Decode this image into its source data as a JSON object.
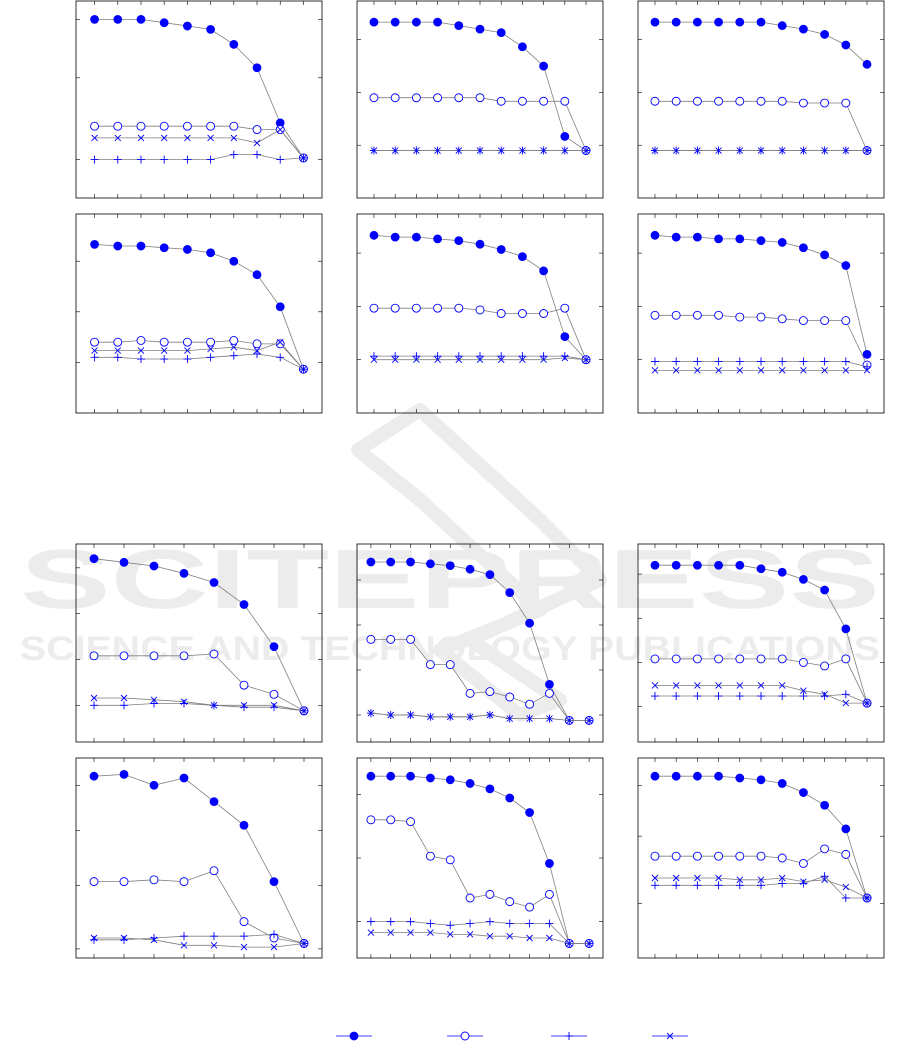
{
  "watermark": {
    "title": "SCITEPRESS",
    "subtitle": "SCIENCE AND TECHNOLOGY PUBLICATIONS"
  },
  "colors": {
    "marker": "#0000ff",
    "line": "#808080",
    "frame": "#000000",
    "watermark": "#ececec"
  },
  "legend": [
    {
      "name": "",
      "marker": "filled-circle"
    },
    {
      "name": "",
      "marker": "open-circle"
    },
    {
      "name": "",
      "marker": "plus"
    },
    {
      "name": "",
      "marker": "cross"
    }
  ],
  "chart_data": [
    {
      "type": "line",
      "x": [
        1,
        2,
        3,
        4,
        5,
        6,
        7,
        8,
        9,
        10
      ],
      "xlim": [
        0.2,
        10.8
      ],
      "ylim": [
        0,
        1.18
      ],
      "yticks": [
        0.23,
        0.72,
        1.07
      ],
      "grid": false,
      "series": [
        {
          "marker": "filled-circle",
          "values": [
            1.07,
            1.07,
            1.07,
            1.05,
            1.03,
            1.01,
            0.92,
            0.78,
            0.45,
            0.24
          ]
        },
        {
          "marker": "open-circle",
          "values": [
            0.43,
            0.43,
            0.43,
            0.43,
            0.43,
            0.43,
            0.43,
            0.41,
            0.41,
            0.24
          ]
        },
        {
          "marker": "cross",
          "values": [
            0.36,
            0.36,
            0.36,
            0.36,
            0.36,
            0.36,
            0.36,
            0.33,
            0.41,
            0.24
          ]
        },
        {
          "marker": "plus",
          "values": [
            0.23,
            0.23,
            0.23,
            0.23,
            0.23,
            0.23,
            0.26,
            0.26,
            0.23,
            0.24
          ]
        }
      ]
    },
    {
      "type": "line",
      "x": [
        1,
        2,
        3,
        4,
        5,
        6,
        7,
        8,
        9,
        10,
        11
      ],
      "xlim": [
        0.2,
        11.8
      ],
      "ylim": [
        0,
        1.12
      ],
      "yticks": [
        0.3,
        0.6,
        0.9
      ],
      "grid": false,
      "series": [
        {
          "marker": "filled-circle",
          "values": [
            1.0,
            1.0,
            1.0,
            1.0,
            0.98,
            0.96,
            0.94,
            0.86,
            0.75,
            0.35,
            0.27
          ]
        },
        {
          "marker": "open-circle",
          "values": [
            0.57,
            0.57,
            0.57,
            0.57,
            0.57,
            0.57,
            0.55,
            0.55,
            0.55,
            0.55,
            0.27
          ]
        },
        {
          "marker": "plus",
          "values": [
            0.27,
            0.27,
            0.27,
            0.27,
            0.27,
            0.27,
            0.27,
            0.27,
            0.27,
            0.27,
            0.27
          ]
        },
        {
          "marker": "cross",
          "values": [
            0.27,
            0.27,
            0.27,
            0.27,
            0.27,
            0.27,
            0.27,
            0.27,
            0.27,
            0.27,
            0.27
          ]
        }
      ]
    },
    {
      "type": "line",
      "x": [
        1,
        2,
        3,
        4,
        5,
        6,
        7,
        8,
        9,
        10,
        11
      ],
      "xlim": [
        0.2,
        11.8
      ],
      "ylim": [
        0,
        1.12
      ],
      "yticks": [
        0.3,
        0.6,
        0.9
      ],
      "grid": false,
      "series": [
        {
          "marker": "filled-circle",
          "values": [
            1.0,
            1.0,
            1.0,
            1.0,
            1.0,
            1.0,
            0.98,
            0.96,
            0.93,
            0.87,
            0.76
          ]
        },
        {
          "marker": "open-circle",
          "values": [
            0.55,
            0.55,
            0.55,
            0.55,
            0.55,
            0.55,
            0.55,
            0.54,
            0.54,
            0.54,
            0.27
          ]
        },
        {
          "marker": "plus",
          "values": [
            0.27,
            0.27,
            0.27,
            0.27,
            0.27,
            0.27,
            0.27,
            0.27,
            0.27,
            0.27,
            0.27
          ]
        },
        {
          "marker": "cross",
          "values": [
            0.27,
            0.27,
            0.27,
            0.27,
            0.27,
            0.27,
            0.27,
            0.27,
            0.27,
            0.27,
            0.27
          ]
        }
      ]
    },
    {
      "type": "line",
      "x": [
        1,
        2,
        3,
        4,
        5,
        6,
        7,
        8,
        9,
        10
      ],
      "xlim": [
        0.2,
        10.8
      ],
      "ylim": [
        0,
        1.18
      ],
      "yticks": [
        0.3,
        0.6,
        0.9
      ],
      "grid": false,
      "series": [
        {
          "marker": "filled-circle",
          "values": [
            1.0,
            0.99,
            0.99,
            0.98,
            0.97,
            0.95,
            0.9,
            0.82,
            0.63,
            0.26
          ]
        },
        {
          "marker": "open-circle",
          "values": [
            0.42,
            0.42,
            0.43,
            0.42,
            0.42,
            0.42,
            0.43,
            0.41,
            0.41,
            0.26
          ]
        },
        {
          "marker": "cross",
          "values": [
            0.37,
            0.37,
            0.37,
            0.37,
            0.37,
            0.38,
            0.39,
            0.37,
            0.42,
            0.26
          ]
        },
        {
          "marker": "plus",
          "values": [
            0.33,
            0.33,
            0.32,
            0.32,
            0.32,
            0.33,
            0.34,
            0.35,
            0.33,
            0.26
          ]
        }
      ]
    },
    {
      "type": "line",
      "x": [
        1,
        2,
        3,
        4,
        5,
        6,
        7,
        8,
        9,
        10,
        11
      ],
      "xlim": [
        0.2,
        11.8
      ],
      "ylim": [
        0,
        1.12
      ],
      "yticks": [
        0.3,
        0.6,
        0.9
      ],
      "grid": false,
      "series": [
        {
          "marker": "filled-circle",
          "values": [
            1.0,
            0.99,
            0.99,
            0.98,
            0.97,
            0.95,
            0.92,
            0.88,
            0.8,
            0.43,
            0.3
          ]
        },
        {
          "marker": "open-circle",
          "values": [
            0.59,
            0.59,
            0.59,
            0.59,
            0.59,
            0.58,
            0.56,
            0.56,
            0.56,
            0.59,
            0.3
          ]
        },
        {
          "marker": "plus",
          "values": [
            0.32,
            0.32,
            0.32,
            0.32,
            0.32,
            0.32,
            0.32,
            0.32,
            0.32,
            0.32,
            0.3
          ]
        },
        {
          "marker": "cross",
          "values": [
            0.3,
            0.3,
            0.3,
            0.3,
            0.3,
            0.3,
            0.3,
            0.3,
            0.3,
            0.31,
            0.3
          ]
        }
      ]
    },
    {
      "type": "line",
      "x": [
        1,
        2,
        3,
        4,
        5,
        6,
        7,
        8,
        9,
        10,
        11
      ],
      "xlim": [
        0.2,
        11.8
      ],
      "ylim": [
        0,
        1.12
      ],
      "yticks": [
        0.3,
        0.6,
        0.9
      ],
      "grid": false,
      "series": [
        {
          "marker": "filled-circle",
          "values": [
            1.0,
            0.99,
            0.99,
            0.98,
            0.98,
            0.97,
            0.96,
            0.93,
            0.89,
            0.83,
            0.33
          ]
        },
        {
          "marker": "open-circle",
          "values": [
            0.55,
            0.55,
            0.55,
            0.55,
            0.54,
            0.54,
            0.53,
            0.52,
            0.52,
            0.52,
            0.27
          ]
        },
        {
          "marker": "plus",
          "values": [
            0.29,
            0.29,
            0.29,
            0.29,
            0.29,
            0.29,
            0.29,
            0.29,
            0.29,
            0.29,
            0.26
          ]
        },
        {
          "marker": "cross",
          "values": [
            0.24,
            0.24,
            0.24,
            0.24,
            0.24,
            0.24,
            0.24,
            0.24,
            0.24,
            0.24,
            0.24
          ]
        }
      ]
    },
    {
      "type": "line",
      "x": [
        1,
        2,
        3,
        4,
        5,
        6,
        7,
        8
      ],
      "xlim": [
        0.4,
        8.6
      ],
      "ylim": [
        0,
        1.08
      ],
      "yticks": [
        0.2,
        0.45,
        0.7,
        0.95
      ],
      "grid": false,
      "series": [
        {
          "marker": "filled-circle",
          "values": [
            1.0,
            0.98,
            0.96,
            0.92,
            0.87,
            0.75,
            0.52,
            0.17
          ]
        },
        {
          "marker": "open-circle",
          "values": [
            0.47,
            0.47,
            0.47,
            0.47,
            0.48,
            0.31,
            0.26,
            0.17
          ]
        },
        {
          "marker": "cross",
          "values": [
            0.24,
            0.24,
            0.23,
            0.22,
            0.2,
            0.2,
            0.2,
            0.17
          ]
        },
        {
          "marker": "plus",
          "values": [
            0.2,
            0.2,
            0.21,
            0.21,
            0.2,
            0.19,
            0.19,
            0.17
          ]
        }
      ]
    },
    {
      "type": "line",
      "x": [
        1,
        2,
        3,
        4,
        5,
        6,
        7,
        8,
        9,
        10,
        11,
        12
      ],
      "xlim": [
        0.3,
        12.7
      ],
      "ylim": [
        0,
        1.1
      ],
      "yticks": [
        0.15,
        0.4,
        0.65,
        0.9
      ],
      "grid": false,
      "series": [
        {
          "marker": "filled-circle",
          "values": [
            1.0,
            1.0,
            1.0,
            0.99,
            0.98,
            0.96,
            0.93,
            0.83,
            0.66,
            0.32,
            0.12,
            0.12
          ]
        },
        {
          "marker": "open-circle",
          "values": [
            0.57,
            0.57,
            0.57,
            0.43,
            0.43,
            0.27,
            0.28,
            0.25,
            0.21,
            0.27,
            0.12,
            0.12
          ]
        },
        {
          "marker": "plus",
          "values": [
            0.16,
            0.15,
            0.15,
            0.14,
            0.14,
            0.14,
            0.15,
            0.13,
            0.13,
            0.13,
            0.12,
            0.12
          ]
        },
        {
          "marker": "cross",
          "values": [
            0.16,
            0.15,
            0.15,
            0.14,
            0.14,
            0.14,
            0.15,
            0.13,
            0.13,
            0.13,
            0.12,
            0.12
          ]
        }
      ]
    },
    {
      "type": "line",
      "x": [
        1,
        2,
        3,
        4,
        5,
        6,
        7,
        8,
        9,
        10,
        11
      ],
      "xlim": [
        0.2,
        11.8
      ],
      "ylim": [
        0,
        1.12
      ],
      "yticks": [
        0.2,
        0.45,
        0.7,
        0.95
      ],
      "grid": false,
      "series": [
        {
          "marker": "filled-circle",
          "values": [
            1.0,
            1.0,
            1.0,
            1.0,
            1.0,
            0.98,
            0.96,
            0.92,
            0.86,
            0.64,
            0.22
          ]
        },
        {
          "marker": "open-circle",
          "values": [
            0.47,
            0.47,
            0.47,
            0.47,
            0.47,
            0.47,
            0.47,
            0.45,
            0.43,
            0.47,
            0.22
          ]
        },
        {
          "marker": "cross",
          "values": [
            0.32,
            0.32,
            0.32,
            0.32,
            0.32,
            0.32,
            0.32,
            0.29,
            0.27,
            0.22,
            0.22
          ]
        },
        {
          "marker": "plus",
          "values": [
            0.26,
            0.26,
            0.26,
            0.26,
            0.26,
            0.26,
            0.26,
            0.26,
            0.26,
            0.27,
            0.22
          ]
        }
      ]
    },
    {
      "type": "line",
      "x": [
        1,
        2,
        3,
        4,
        5,
        6,
        7,
        8
      ],
      "xlim": [
        0.4,
        8.6
      ],
      "ylim": [
        0,
        1.1
      ],
      "yticks": [
        0.05,
        0.4,
        0.7,
        0.95
      ],
      "grid": false,
      "series": [
        {
          "marker": "filled-circle",
          "values": [
            1.0,
            1.01,
            0.95,
            0.99,
            0.86,
            0.73,
            0.42,
            0.08
          ]
        },
        {
          "marker": "open-circle",
          "values": [
            0.42,
            0.42,
            0.43,
            0.42,
            0.48,
            0.2,
            0.11,
            0.08
          ]
        },
        {
          "marker": "plus",
          "values": [
            0.1,
            0.1,
            0.11,
            0.12,
            0.12,
            0.12,
            0.13,
            0.08
          ]
        },
        {
          "marker": "cross",
          "values": [
            0.11,
            0.11,
            0.1,
            0.07,
            0.07,
            0.06,
            0.06,
            0.08
          ]
        }
      ]
    },
    {
      "type": "line",
      "x": [
        1,
        2,
        3,
        4,
        5,
        6,
        7,
        8,
        9,
        10,
        11,
        12
      ],
      "xlim": [
        0.3,
        12.7
      ],
      "ylim": [
        0,
        1.1
      ],
      "yticks": [
        0.2,
        0.55,
        0.9
      ],
      "grid": false,
      "series": [
        {
          "marker": "filled-circle",
          "values": [
            1.0,
            1.0,
            1.0,
            0.99,
            0.98,
            0.96,
            0.93,
            0.88,
            0.8,
            0.52,
            0.08,
            0.08
          ]
        },
        {
          "marker": "open-circle",
          "values": [
            0.76,
            0.76,
            0.75,
            0.56,
            0.54,
            0.33,
            0.35,
            0.31,
            0.28,
            0.35,
            0.08,
            0.08
          ]
        },
        {
          "marker": "plus",
          "values": [
            0.2,
            0.2,
            0.2,
            0.19,
            0.18,
            0.19,
            0.2,
            0.19,
            0.19,
            0.19,
            0.08,
            0.08
          ]
        },
        {
          "marker": "cross",
          "values": [
            0.14,
            0.14,
            0.14,
            0.14,
            0.13,
            0.13,
            0.12,
            0.12,
            0.11,
            0.11,
            0.08,
            0.08
          ]
        }
      ]
    },
    {
      "type": "line",
      "x": [
        1,
        2,
        3,
        4,
        5,
        6,
        7,
        8,
        9,
        10,
        11
      ],
      "xlim": [
        0.2,
        11.8
      ],
      "ylim": [
        0,
        1.1
      ],
      "yticks": [
        0.3,
        0.67,
        0.95
      ],
      "grid": false,
      "series": [
        {
          "marker": "filled-circle",
          "values": [
            1.0,
            1.0,
            1.0,
            1.0,
            0.99,
            0.98,
            0.96,
            0.91,
            0.84,
            0.71,
            0.33
          ]
        },
        {
          "marker": "open-circle",
          "values": [
            0.56,
            0.56,
            0.56,
            0.56,
            0.56,
            0.56,
            0.55,
            0.52,
            0.6,
            0.57,
            0.33
          ]
        },
        {
          "marker": "cross",
          "values": [
            0.44,
            0.44,
            0.44,
            0.44,
            0.43,
            0.43,
            0.44,
            0.42,
            0.43,
            0.39,
            0.33
          ]
        },
        {
          "marker": "plus",
          "values": [
            0.4,
            0.4,
            0.4,
            0.4,
            0.4,
            0.4,
            0.41,
            0.41,
            0.45,
            0.33,
            0.33
          ]
        }
      ]
    }
  ]
}
